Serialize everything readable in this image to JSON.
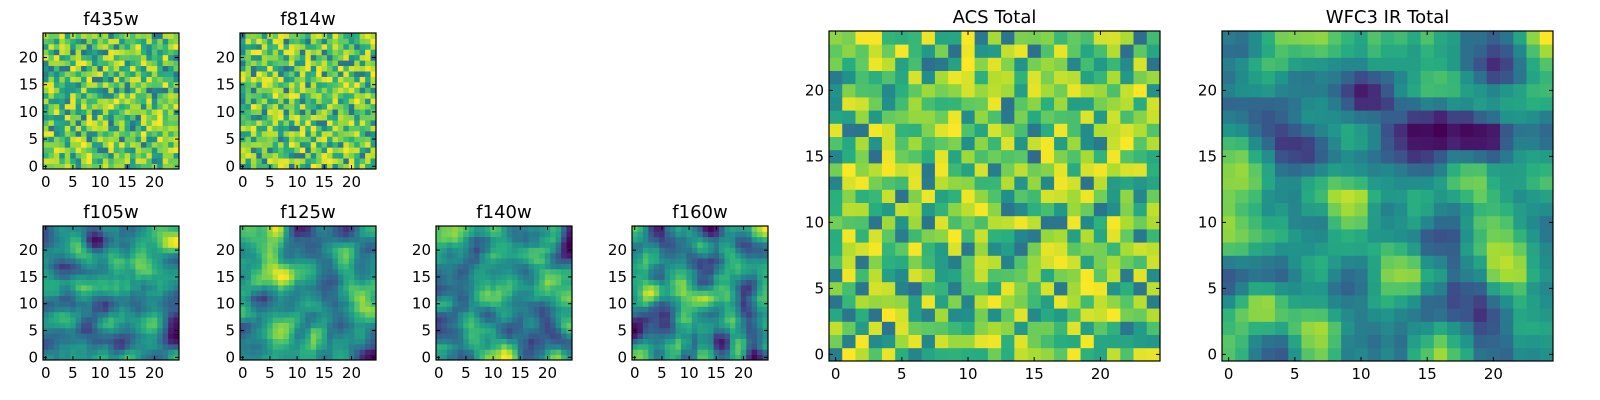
{
  "figure": {
    "colormap": "viridis",
    "colors": {
      "low": "#440154",
      "mid": "#21908c",
      "high": "#fde725"
    }
  },
  "chart_data": [
    {
      "type": "heatmap",
      "title": "f435w",
      "grid_size": 25,
      "xticks": [
        "0",
        "5",
        "10",
        "15",
        "20"
      ],
      "yticks": [
        "0",
        "5",
        "10",
        "15",
        "20"
      ],
      "xlim": [
        0,
        25
      ],
      "ylim": [
        0,
        25
      ],
      "seed": 11,
      "texture": "noise"
    },
    {
      "type": "heatmap",
      "title": "f814w",
      "grid_size": 25,
      "xticks": [
        "0",
        "5",
        "10",
        "15",
        "20"
      ],
      "yticks": [
        "0",
        "5",
        "10",
        "15",
        "20"
      ],
      "xlim": [
        0,
        25
      ],
      "ylim": [
        0,
        25
      ],
      "seed": 23,
      "texture": "noise"
    },
    {
      "type": "heatmap",
      "title": "f105w",
      "grid_size": 25,
      "xticks": [
        "0",
        "5",
        "10",
        "15",
        "20"
      ],
      "yticks": [
        "0",
        "5",
        "10",
        "15",
        "20"
      ],
      "xlim": [
        0,
        25
      ],
      "ylim": [
        0,
        25
      ],
      "seed": 37,
      "texture": "smooth"
    },
    {
      "type": "heatmap",
      "title": "f125w",
      "grid_size": 25,
      "xticks": [
        "0",
        "5",
        "10",
        "15",
        "20"
      ],
      "yticks": [
        "0",
        "5",
        "10",
        "15",
        "20"
      ],
      "xlim": [
        0,
        25
      ],
      "ylim": [
        0,
        25
      ],
      "seed": 41,
      "texture": "smooth"
    },
    {
      "type": "heatmap",
      "title": "f140w",
      "grid_size": 25,
      "xticks": [
        "0",
        "5",
        "10",
        "15",
        "20"
      ],
      "yticks": [
        "0",
        "5",
        "10",
        "15",
        "20"
      ],
      "xlim": [
        0,
        25
      ],
      "ylim": [
        0,
        25
      ],
      "seed": 53,
      "texture": "smooth"
    },
    {
      "type": "heatmap",
      "title": "f160w",
      "grid_size": 25,
      "xticks": [
        "0",
        "5",
        "10",
        "15",
        "20"
      ],
      "yticks": [
        "0",
        "5",
        "10",
        "15",
        "20"
      ],
      "xlim": [
        0,
        25
      ],
      "ylim": [
        0,
        25
      ],
      "seed": 67,
      "texture": "smooth"
    },
    {
      "type": "heatmap",
      "title": "ACS Total",
      "grid_size": 25,
      "xticks": [
        "0",
        "5",
        "10",
        "15",
        "20"
      ],
      "yticks": [
        "0",
        "5",
        "10",
        "15",
        "20"
      ],
      "xlim": [
        0,
        25
      ],
      "ylim": [
        0,
        25
      ],
      "seed": 79,
      "texture": "noise"
    },
    {
      "type": "heatmap",
      "title": "WFC3 IR Total",
      "grid_size": 25,
      "xticks": [
        "0",
        "5",
        "10",
        "15",
        "20"
      ],
      "yticks": [
        "0",
        "5",
        "10",
        "15",
        "20"
      ],
      "xlim": [
        0,
        25
      ],
      "ylim": [
        0,
        25
      ],
      "seed": 97,
      "texture": "smooth"
    }
  ]
}
